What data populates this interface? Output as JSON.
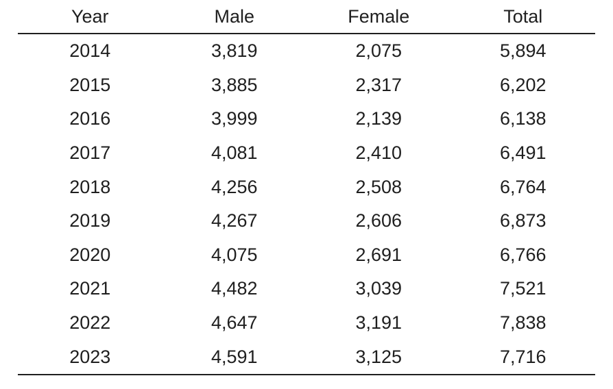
{
  "colors": {
    "background": "#ffffff",
    "text": "#1f1f1f",
    "rule": "#1f1f1f"
  },
  "table": {
    "columns": {
      "year": "Year",
      "male": "Male",
      "female": "Female",
      "total": "Total"
    },
    "rows": [
      {
        "year": "2014",
        "male": "3,819",
        "female": "2,075",
        "total": "5,894"
      },
      {
        "year": "2015",
        "male": "3,885",
        "female": "2,317",
        "total": "6,202"
      },
      {
        "year": "2016",
        "male": "3,999",
        "female": "2,139",
        "total": "6,138"
      },
      {
        "year": "2017",
        "male": "4,081",
        "female": "2,410",
        "total": "6,491"
      },
      {
        "year": "2018",
        "male": "4,256",
        "female": "2,508",
        "total": "6,764"
      },
      {
        "year": "2019",
        "male": "4,267",
        "female": "2,606",
        "total": "6,873"
      },
      {
        "year": "2020",
        "male": "4,075",
        "female": "2,691",
        "total": "6,766"
      },
      {
        "year": "2021",
        "male": "4,482",
        "female": "3,039",
        "total": "7,521"
      },
      {
        "year": "2022",
        "male": "4,647",
        "female": "3,191",
        "total": "7,838"
      },
      {
        "year": "2023",
        "male": "4,591",
        "female": "3,125",
        "total": "7,716"
      }
    ]
  },
  "chart_data": {
    "type": "table",
    "title": "",
    "columns": [
      "Year",
      "Male",
      "Female",
      "Total"
    ],
    "categories": [
      2014,
      2015,
      2016,
      2017,
      2018,
      2019,
      2020,
      2021,
      2022,
      2023
    ],
    "series": [
      {
        "name": "Male",
        "values": [
          3819,
          3885,
          3999,
          4081,
          4256,
          4267,
          4075,
          4482,
          4647,
          4591
        ]
      },
      {
        "name": "Female",
        "values": [
          2075,
          2317,
          2139,
          2410,
          2508,
          2606,
          2691,
          3039,
          3191,
          3125
        ]
      },
      {
        "name": "Total",
        "values": [
          5894,
          6202,
          6138,
          6491,
          6764,
          6873,
          6766,
          7521,
          7838,
          7716
        ]
      }
    ],
    "rows": [
      [
        2014,
        3819,
        2075,
        5894
      ],
      [
        2015,
        3885,
        2317,
        6202
      ],
      [
        2016,
        3999,
        2139,
        6138
      ],
      [
        2017,
        4081,
        2410,
        6491
      ],
      [
        2018,
        4256,
        2508,
        6764
      ],
      [
        2019,
        4267,
        2606,
        6873
      ],
      [
        2020,
        4075,
        2691,
        6766
      ],
      [
        2021,
        4482,
        3039,
        7521
      ],
      [
        2022,
        4647,
        3191,
        7838
      ],
      [
        2023,
        4591,
        3125,
        7716
      ]
    ],
    "layout": {
      "grid": "horizontal-rules-only",
      "header_rule": true,
      "bottom_rule": true,
      "vertical_lines": false
    }
  }
}
